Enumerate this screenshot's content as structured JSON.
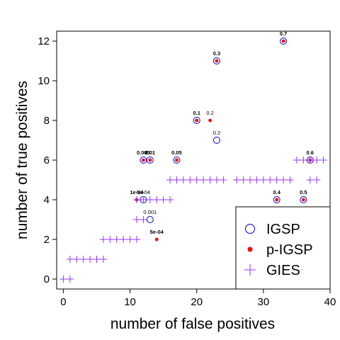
{
  "chart_data": {
    "type": "scatter",
    "title": "",
    "xlabel": "number of false positives",
    "ylabel": "number of true positives",
    "xlim": [
      -1,
      40
    ],
    "ylim": [
      -0.5,
      12.5
    ],
    "xticks": [
      0,
      10,
      20,
      30,
      40
    ],
    "yticks": [
      0,
      2,
      4,
      6,
      8,
      10,
      12
    ],
    "legend_position": "bottom-right",
    "series": [
      {
        "name": "IGSP",
        "marker": "open-circle",
        "color": "#0000cc",
        "points": [
          [
            12,
            4
          ],
          [
            12,
            6
          ],
          [
            13,
            3
          ],
          [
            13,
            6
          ],
          [
            17,
            6
          ],
          [
            20,
            8
          ],
          [
            23,
            7
          ],
          [
            23,
            11
          ],
          [
            32,
            4
          ],
          [
            33,
            12
          ],
          [
            36,
            4
          ],
          [
            37,
            6
          ]
        ]
      },
      {
        "name": "p-IGSP",
        "marker": "filled-dot",
        "color": "#ff0000",
        "points": [
          [
            11,
            4
          ],
          [
            12,
            6
          ],
          [
            13,
            6
          ],
          [
            14,
            2
          ],
          [
            17,
            6
          ],
          [
            20,
            8
          ],
          [
            22,
            8
          ],
          [
            23,
            11
          ],
          [
            32,
            4
          ],
          [
            33,
            12
          ],
          [
            36,
            4
          ],
          [
            37,
            6
          ]
        ]
      },
      {
        "name": "GIES",
        "marker": "plus",
        "color": "#9933ff",
        "points": [
          [
            0,
            0
          ],
          [
            1,
            0
          ],
          [
            1,
            1
          ],
          [
            2,
            1
          ],
          [
            3,
            1
          ],
          [
            4,
            1
          ],
          [
            5,
            1
          ],
          [
            6,
            1
          ],
          [
            6,
            2
          ],
          [
            7,
            2
          ],
          [
            8,
            2
          ],
          [
            9,
            2
          ],
          [
            10,
            2
          ],
          [
            11,
            2
          ],
          [
            11,
            3
          ],
          [
            12,
            3
          ],
          [
            11,
            4
          ],
          [
            12,
            4
          ],
          [
            13,
            4
          ],
          [
            14,
            4
          ],
          [
            15,
            4
          ],
          [
            16,
            4
          ],
          [
            16,
            5
          ],
          [
            17,
            5
          ],
          [
            18,
            5
          ],
          [
            19,
            5
          ],
          [
            20,
            5
          ],
          [
            21,
            5
          ],
          [
            22,
            5
          ],
          [
            23,
            5
          ],
          [
            24,
            5
          ],
          [
            26,
            5
          ],
          [
            27,
            5
          ],
          [
            28,
            5
          ],
          [
            29,
            5
          ],
          [
            30,
            5
          ],
          [
            31,
            5
          ],
          [
            32,
            5
          ],
          [
            33,
            5
          ],
          [
            34,
            5
          ],
          [
            35,
            6
          ],
          [
            36,
            6
          ],
          [
            37,
            6
          ],
          [
            38,
            6
          ],
          [
            39,
            6
          ],
          [
            37,
            5
          ],
          [
            38,
            5
          ]
        ]
      }
    ],
    "annotations": [
      {
        "text": "0.7",
        "x": 33,
        "y": 12,
        "bold": true
      },
      {
        "text": "0.3",
        "x": 23,
        "y": 11,
        "bold": true
      },
      {
        "text": "0.1",
        "x": 20,
        "y": 8,
        "bold": true
      },
      {
        "text": "0.2",
        "x": 22,
        "y": 8,
        "bold": false
      },
      {
        "text": "0.2",
        "x": 23,
        "y": 7,
        "bold": false
      },
      {
        "text": "0.005",
        "x": 12,
        "y": 6,
        "bold": true
      },
      {
        "text": "0.01",
        "x": 13,
        "y": 6,
        "bold": true
      },
      {
        "text": "0.05",
        "x": 17,
        "y": 6,
        "bold": true
      },
      {
        "text": "0.6",
        "x": 37,
        "y": 6,
        "bold": true
      },
      {
        "text": "1e-04",
        "x": 11,
        "y": 4,
        "bold": true
      },
      {
        "text": "5e-04",
        "x": 12,
        "y": 4,
        "bold": false
      },
      {
        "text": "0.001",
        "x": 13,
        "y": 3,
        "bold": false
      },
      {
        "text": "0.4",
        "x": 32,
        "y": 4,
        "bold": true
      },
      {
        "text": "0.5",
        "x": 36,
        "y": 4,
        "bold": true
      },
      {
        "text": "5e-04",
        "x": 14,
        "y": 2,
        "bold": true
      }
    ]
  }
}
